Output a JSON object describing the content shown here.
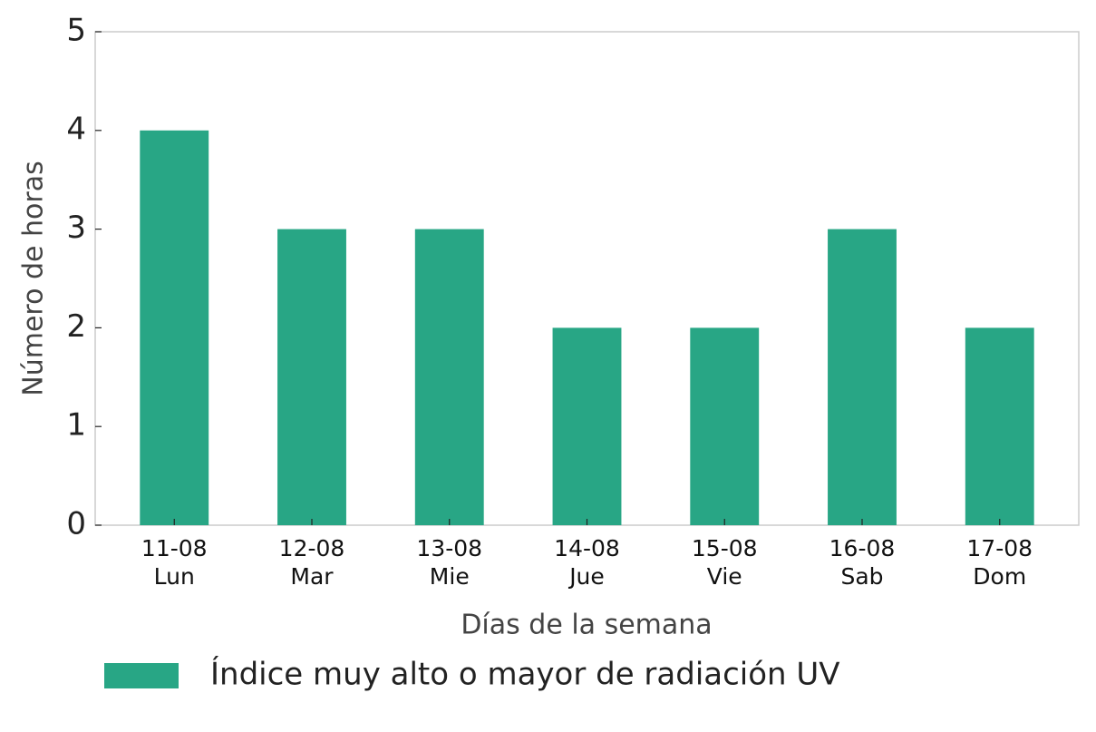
{
  "chart_data": {
    "type": "bar",
    "xlabel": "Días de la semana",
    "ylabel": "Número de horas",
    "categories": [
      "11-08\nLun",
      "12-08\nMar",
      "13-08\nMie",
      "14-08\nJue",
      "15-08\nVie",
      "16-08\nSab",
      "17-08\nDom"
    ],
    "series": [
      {
        "name": "Índice muy alto o mayor de radiación UV",
        "color": "#28a685",
        "values": [
          4,
          3,
          3,
          2,
          2,
          3,
          2
        ]
      }
    ],
    "ylim": [
      0,
      5
    ],
    "yticks": [
      0,
      1,
      2,
      3,
      4,
      5
    ],
    "grid": false,
    "legend": "bottom"
  }
}
